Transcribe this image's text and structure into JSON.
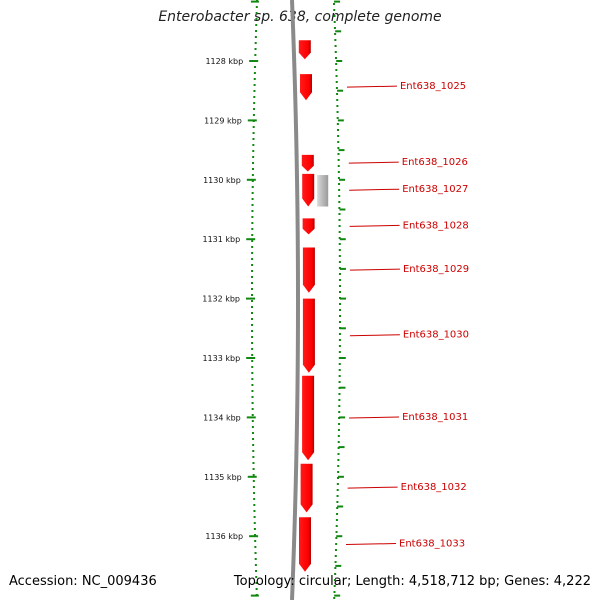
{
  "title": "Enterobacter sp. 638, complete genome",
  "footer": {
    "accession": "Accession: NC_009436",
    "info": "Topology: circular; Length: 4,518,712 bp; Genes: 4,222"
  },
  "colors": {
    "gene": "#ff0000",
    "gene_dark": "#c00000",
    "backbone": "#8a8a8a",
    "ticks": "#118811",
    "labels": "#cc0000",
    "rna": "#bdbdbd"
  },
  "scale": [
    {
      "kbp": 1128,
      "label": "1128 kbp"
    },
    {
      "kbp": 1129,
      "label": "1129 kbp"
    },
    {
      "kbp": 1130,
      "label": "1130 kbp"
    },
    {
      "kbp": 1131,
      "label": "1131 kbp"
    },
    {
      "kbp": 1132,
      "label": "1132 kbp"
    },
    {
      "kbp": 1133,
      "label": "1133 kbp"
    },
    {
      "kbp": 1134,
      "label": "1134 kbp"
    },
    {
      "kbp": 1135,
      "label": "1135 kbp"
    },
    {
      "kbp": 1136,
      "label": "1136 kbp"
    }
  ],
  "genes": [
    {
      "name": "Ent638_1025",
      "start_kbp": 1128.22,
      "end_kbp": 1128.66
    },
    {
      "name": "Ent638_1026",
      "start_kbp": 1129.58,
      "end_kbp": 1129.86
    },
    {
      "name": "Ent638_1027",
      "start_kbp": 1129.9,
      "end_kbp": 1130.45
    },
    {
      "name": "Ent638_1028",
      "start_kbp": 1130.65,
      "end_kbp": 1130.92
    },
    {
      "name": "Ent638_1029",
      "start_kbp": 1131.14,
      "end_kbp": 1131.9
    },
    {
      "name": "Ent638_1030",
      "start_kbp": 1132.0,
      "end_kbp": 1133.25
    },
    {
      "name": "Ent638_1031",
      "start_kbp": 1133.3,
      "end_kbp": 1134.72
    },
    {
      "name": "Ent638_1032",
      "start_kbp": 1134.78,
      "end_kbp": 1135.6
    },
    {
      "name": "Ent638_1033",
      "start_kbp": 1135.68,
      "end_kbp": 1136.6
    }
  ],
  "extra_genes": [
    {
      "start_kbp": 1127.65,
      "end_kbp": 1127.97
    }
  ],
  "rna_features": [
    {
      "start_kbp": 1129.92,
      "end_kbp": 1130.45
    }
  ]
}
